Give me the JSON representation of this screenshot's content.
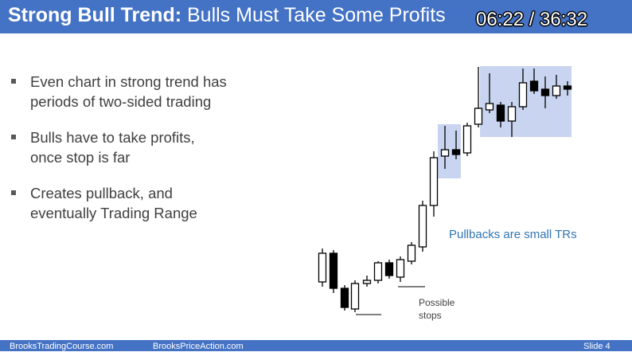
{
  "header": {
    "title_bold": "Strong Bull Trend:",
    "title_rest": " Bulls Must Take Some Profits",
    "timer": "06:22 / 36:32"
  },
  "bullets": [
    {
      "line1": "Even chart in strong trend has",
      "line2": "periods of two-sided trading"
    },
    {
      "line1": "Bulls have to take profits,",
      "line2": "once stop is far"
    },
    {
      "line1": "Creates pullback, and",
      "line2": "eventually Trading Range"
    }
  ],
  "annotations": {
    "pullbacks": "Pullbacks are small TRs",
    "stops_line1": "Possible",
    "stops_line2": "stops"
  },
  "footer": {
    "left": "BrooksTradingCourse.com",
    "middle": "BrooksPriceAction.com",
    "right": "Slide 4"
  },
  "colors": {
    "header_bg": "#4472c4",
    "highlight_box": "#c9d5f0",
    "note_text": "#2f75b5"
  }
}
